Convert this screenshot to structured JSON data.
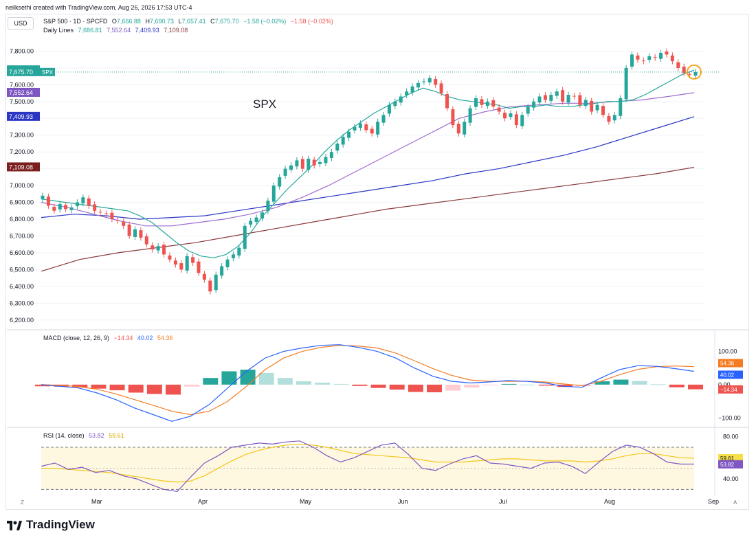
{
  "header": {
    "text": "neilksethi created with TradingView.com, Aug 26, 2026 17:53 UTC-4"
  },
  "currency": "USD",
  "legend": {
    "symbol": "S&P 500 · 1D · SPCFD",
    "o_label": "O",
    "o": "7,666.88",
    "h_label": "H",
    "h": "7,690.73",
    "l_label": "L",
    "l": "7,657.41",
    "c_label": "C",
    "c": "7,675.70",
    "chg": "−1.58 (−0.02%)",
    "chg2": "−1.58 (−0.02%)",
    "ma_label": "Daily Lines",
    "ma1": "7,686.81",
    "ma2": "7,552.64",
    "ma3": "7,409.93",
    "ma4": "7,109.08"
  },
  "macd_legend": {
    "label": "MACD (close, 12, 26, 9)",
    "hist": "−14.34",
    "macd": "40.02",
    "signal": "54.36"
  },
  "rsi_legend": {
    "label": "RSI (14, close)",
    "rsi": "53.82",
    "ma": "59.61"
  },
  "annotation": "SPX",
  "footer": {
    "brand": "TradingView"
  },
  "corner_left": "Z",
  "corner_right": "A",
  "colors": {
    "up": "#26a69a",
    "down": "#ef5350",
    "ma20": "#26a69a",
    "ma50": "#9c6ccf",
    "ma100": "#2a35c4",
    "ma200": "#8b3a3a",
    "macd": "#2962ff",
    "signal": "#f57c20",
    "rsi": "#7e57c2",
    "rsi_ma": "#f5c518"
  },
  "chart_data": [
    {
      "type": "candlestick",
      "symbol": "SPX",
      "ylim": [
        6150,
        7900
      ],
      "y_ticks": [
        6200,
        6300,
        6400,
        6500,
        6600,
        6700,
        6800,
        6900,
        7000,
        7100,
        7200,
        7300,
        7400,
        7500,
        7600,
        7700,
        7800
      ],
      "y_tick_labels": [
        "6,200.00",
        "6,300.00",
        "6,400.00",
        "6,500.00",
        "6,600.00",
        "6,700.00",
        "6,800.00",
        "6,900.00",
        "7,000.00",
        "7,100.00",
        "7,200.00",
        "7,300.00",
        "7,400.00",
        "7,500.00",
        "7,600.00",
        "7,700.00",
        "7,800.00"
      ],
      "x_labels": [
        "Mar",
        "Apr",
        "May",
        "Jun",
        "Jul",
        "Aug",
        "Sep"
      ],
      "price_tags": [
        {
          "label": "7,686.81",
          "value": 7686.81,
          "color": "#26a69a"
        },
        {
          "label": "7,675.70",
          "value": 7675.7,
          "color": "#26a69a"
        },
        {
          "label": "7,552.64",
          "value": 7552.64,
          "color": "#7e57c2"
        },
        {
          "label": "7,409.93",
          "value": 7409.93,
          "color": "#2a35c4"
        },
        {
          "label": "7,109.08",
          "value": 7109.08,
          "color": "#7b1f1f"
        }
      ],
      "symbol_tag": "SPX",
      "closes": [
        6940,
        6880,
        6850,
        6890,
        6860,
        6870,
        6900,
        6930,
        6880,
        6850,
        6840,
        6830,
        6800,
        6790,
        6760,
        6700,
        6740,
        6690,
        6650,
        6620,
        6640,
        6590,
        6560,
        6530,
        6500,
        6580,
        6540,
        6480,
        6440,
        6370,
        6470,
        6520,
        6560,
        6590,
        6630,
        6760,
        6790,
        6810,
        6840,
        6910,
        7000,
        7050,
        7100,
        7120,
        7150,
        7100,
        7160,
        7120,
        7140,
        7170,
        7200,
        7250,
        7290,
        7320,
        7350,
        7370,
        7330,
        7310,
        7380,
        7420,
        7480,
        7500,
        7530,
        7560,
        7590,
        7610,
        7620,
        7640,
        7600,
        7550,
        7460,
        7360,
        7310,
        7380,
        7460,
        7520,
        7480,
        7500,
        7470,
        7440,
        7400,
        7430,
        7360,
        7420,
        7470,
        7500,
        7530,
        7510,
        7540,
        7560,
        7500,
        7540,
        7530,
        7480,
        7510,
        7440,
        7480,
        7420,
        7380,
        7420,
        7520,
        7700,
        7780,
        7750,
        7740,
        7770,
        7760,
        7790,
        7780,
        7740,
        7700,
        7670,
        7660,
        7676
      ],
      "ma20": [
        6920,
        6910,
        6900,
        6890,
        6880,
        6870,
        6860,
        6850,
        6820,
        6780,
        6720,
        6660,
        6610,
        6580,
        6570,
        6590,
        6640,
        6720,
        6820,
        6900,
        6980,
        7050,
        7120,
        7200,
        7270,
        7330,
        7380,
        7430,
        7470,
        7510,
        7550,
        7580,
        7560,
        7530,
        7510,
        7500,
        7490,
        7480,
        7460,
        7470,
        7470,
        7480,
        7470,
        7470,
        7480,
        7490,
        7500,
        7500,
        7510,
        7540,
        7580,
        7620,
        7660,
        7687
      ],
      "ma50": [
        6900,
        6870,
        6830,
        6790,
        6760,
        6760,
        6780,
        6800,
        6830,
        6870,
        6930,
        7000,
        7080,
        7160,
        7240,
        7320,
        7400,
        7440,
        7470,
        7480,
        7490,
        7490,
        7500,
        7510,
        7530,
        7553
      ],
      "ma100": [
        6810,
        6830,
        6820,
        6800,
        6810,
        6820,
        6850,
        6880,
        6910,
        6940,
        6970,
        7000,
        7030,
        7070,
        7100,
        7140,
        7180,
        7230,
        7290,
        7350,
        7410
      ],
      "ma200": [
        6490,
        6560,
        6600,
        6630,
        6660,
        6700,
        6740,
        6780,
        6820,
        6860,
        6890,
        6920,
        6950,
        6980,
        7010,
        7040,
        7070,
        7109
      ]
    },
    {
      "type": "macd",
      "ylim": [
        -120,
        140
      ],
      "y_ticks": [
        -100,
        0,
        100
      ],
      "y_tick_labels": [
        "−100.00",
        "0.00",
        "100.00"
      ],
      "macd": [
        0,
        -5,
        -10,
        -25,
        -45,
        -70,
        -90,
        -110,
        -95,
        -60,
        -10,
        40,
        80,
        100,
        110,
        118,
        120,
        112,
        100,
        80,
        50,
        25,
        10,
        5,
        8,
        12,
        10,
        5,
        -5,
        -8,
        20,
        45,
        57,
        55,
        48,
        40
      ],
      "signal": [
        0,
        -2,
        -6,
        -14,
        -28,
        -45,
        -62,
        -80,
        -90,
        -80,
        -50,
        -5,
        45,
        80,
        100,
        112,
        118,
        116,
        110,
        95,
        72,
        48,
        28,
        14,
        10,
        10,
        10,
        8,
        2,
        -3,
        10,
        30,
        46,
        54,
        56,
        54
      ],
      "histogram": [
        -5,
        -6,
        -8,
        -12,
        -17,
        -24,
        -28,
        -30,
        -6,
        20,
        40,
        45,
        35,
        20,
        10,
        6,
        2,
        -4,
        -10,
        -15,
        -22,
        -23,
        -18,
        -9,
        -2,
        2,
        0,
        -3,
        -7,
        -5,
        10,
        15,
        11,
        1,
        -8,
        -14
      ],
      "labels": {
        "macd": "40.02",
        "signal": "54.36",
        "hist": "−14.34"
      }
    },
    {
      "type": "rsi",
      "ylim": [
        25,
        85
      ],
      "y_ticks": [
        40,
        80
      ],
      "y_tick_labels": [
        "40.00",
        "80.00"
      ],
      "bands": [
        30,
        70
      ],
      "rsi": [
        52,
        55,
        49,
        51,
        46,
        48,
        43,
        40,
        35,
        30,
        28,
        42,
        55,
        62,
        70,
        72,
        74,
        73,
        75,
        76,
        70,
        62,
        56,
        60,
        66,
        72,
        74,
        63,
        50,
        48,
        54,
        59,
        62,
        55,
        54,
        52,
        50,
        55,
        56,
        52,
        45,
        56,
        66,
        72,
        70,
        64,
        56,
        54,
        54
      ],
      "rsi_ma": [
        50,
        50,
        49,
        48,
        47,
        46,
        44,
        42,
        40,
        38,
        37,
        38,
        43,
        50,
        57,
        63,
        67,
        70,
        72,
        73,
        72,
        70,
        67,
        64,
        63,
        62,
        61,
        60,
        58,
        56,
        56,
        56,
        57,
        58,
        59,
        59,
        58,
        57,
        57,
        57,
        56,
        57,
        59,
        62,
        64,
        64,
        62,
        60,
        59.61
      ],
      "labels": {
        "rsi": "53.82",
        "rsi_ma": "59.61"
      }
    }
  ]
}
